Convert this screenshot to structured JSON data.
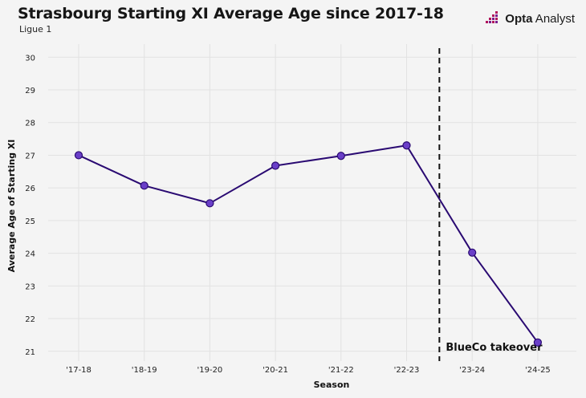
{
  "brand": {
    "name": "Opta Analyst",
    "bold": "Opta",
    "light": " Analyst"
  },
  "chart_data": {
    "type": "line",
    "title": "Strasbourg Starting XI Average Age since 2017-18",
    "subtitle": "Ligue 1",
    "xlabel": "Season",
    "ylabel": "Average Age of Starting XI",
    "categories": [
      "'17-18",
      "'18-19",
      "'19-20",
      "'20-21",
      "'21-22",
      "'22-23",
      "'23-24",
      "'24-25"
    ],
    "series": [
      {
        "values": [
          27.0,
          26.07,
          25.53,
          26.68,
          26.98,
          27.3,
          24.02,
          21.27
        ]
      }
    ],
    "ylim": [
      20.7,
      30.4
    ],
    "yticks": [
      21,
      22,
      23,
      24,
      25,
      26,
      27,
      28,
      29,
      30
    ],
    "grid": true,
    "line_color": "#2a0a72",
    "marker_fill": "#6a3fc8",
    "marker_edge": "#2a0a72",
    "annotation": {
      "label": "BlueCo takeover",
      "x_between": [
        "'22-23",
        "'23-24"
      ],
      "style": "dashed vertical line"
    }
  },
  "colors": {
    "background": "#f4f4f4",
    "grid": "#e2e2e2",
    "logo_primary": "#b0145a",
    "logo_secondary": "#7a1d8f"
  }
}
